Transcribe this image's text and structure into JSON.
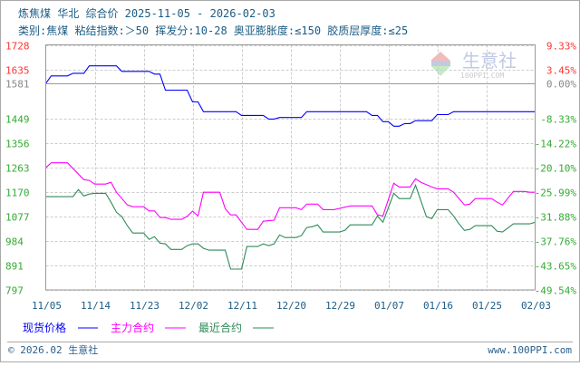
{
  "header": {
    "title": "炼焦煤 华北 综合价 2025-11-05 - 2026-02-03",
    "subtitle": "类别:焦煤 粘结指数:＞50 挥发分:10-28 奥亚膨胀度:≤150 胶质层厚度:≤25"
  },
  "watermark": {
    "brand": "生意社",
    "site": "100PPI.COM",
    "logo_text": "PPI"
  },
  "chart_data": {
    "type": "line",
    "title": "炼焦煤 华北 综合价 2025-11-05 - 2026-02-03",
    "x_range": [
      "2025-11-05",
      "2026-02-03"
    ],
    "ylim": [
      797,
      1728
    ],
    "y_ticks": [
      "1728",
      "1635",
      "1581",
      "1449",
      "1356",
      "1263",
      "1170",
      "1077",
      "984",
      "891",
      "797"
    ],
    "y_tick_values": [
      1728,
      1635,
      1581,
      1449,
      1356,
      1263,
      1170,
      1077,
      984,
      891,
      797
    ],
    "y2_ticks": [
      "9.33%",
      "3.45%",
      "0.00%",
      "-8.33%",
      "-14.22%",
      "-20.10%",
      "-25.99%",
      "-31.88%",
      "-37.76%",
      "-43.65%",
      "-49.54%"
    ],
    "baseline": 1581,
    "x_ticks": [
      "11/05",
      "11/14",
      "11/23",
      "12/02",
      "12/11",
      "12/20",
      "12/29",
      "01/07",
      "01/16",
      "01/25",
      "02/03"
    ],
    "x_tick_dates": [
      "2025-11-05",
      "2025-11-14",
      "2025-11-23",
      "2025-12-02",
      "2025-12-11",
      "2025-12-20",
      "2025-12-29",
      "2026-01-07",
      "2026-01-16",
      "2026-01-25",
      "2026-02-03"
    ],
    "grid": true,
    "legend_position": "bottom-left",
    "colors": {
      "positive_axis": "#ff3333",
      "zero_axis": "#888888",
      "negative_axis": "#33aa33"
    },
    "series": [
      {
        "name": "现货价格",
        "color": "#0000ff",
        "points": [
          [
            "2025-11-05",
            1581
          ],
          [
            "2025-11-06",
            1610
          ],
          [
            "2025-11-09",
            1610
          ],
          [
            "2025-11-10",
            1620
          ],
          [
            "2025-11-12",
            1620
          ],
          [
            "2025-11-13",
            1648
          ],
          [
            "2025-11-18",
            1648
          ],
          [
            "2025-11-19",
            1627
          ],
          [
            "2025-11-24",
            1627
          ],
          [
            "2025-11-25",
            1617
          ],
          [
            "2025-11-26",
            1617
          ],
          [
            "2025-11-27",
            1556
          ],
          [
            "2025-12-01",
            1556
          ],
          [
            "2025-12-02",
            1511
          ],
          [
            "2025-12-03",
            1511
          ],
          [
            "2025-12-04",
            1474
          ],
          [
            "2025-12-10",
            1474
          ],
          [
            "2025-12-11",
            1460
          ],
          [
            "2025-12-15",
            1460
          ],
          [
            "2025-12-16",
            1446
          ],
          [
            "2025-12-17",
            1446
          ],
          [
            "2025-12-18",
            1452
          ],
          [
            "2025-12-22",
            1452
          ],
          [
            "2025-12-23",
            1474
          ],
          [
            "2026-01-03",
            1474
          ],
          [
            "2026-01-04",
            1460
          ],
          [
            "2026-01-05",
            1460
          ],
          [
            "2026-01-06",
            1436
          ],
          [
            "2026-01-07",
            1436
          ],
          [
            "2026-01-08",
            1419
          ],
          [
            "2026-01-09",
            1419
          ],
          [
            "2026-01-10",
            1429
          ],
          [
            "2026-01-11",
            1429
          ],
          [
            "2026-01-12",
            1440
          ],
          [
            "2026-01-15",
            1440
          ],
          [
            "2026-01-16",
            1463
          ],
          [
            "2026-01-18",
            1463
          ],
          [
            "2026-01-19",
            1474
          ],
          [
            "2026-02-03",
            1474
          ]
        ]
      },
      {
        "name": "主力合约",
        "color": "#ff00ff",
        "points": [
          [
            "2025-11-05",
            1261
          ],
          [
            "2025-11-06",
            1280
          ],
          [
            "2025-11-09",
            1280
          ],
          [
            "2025-11-12",
            1216
          ],
          [
            "2025-11-13",
            1213
          ],
          [
            "2025-11-14",
            1199
          ],
          [
            "2025-11-16",
            1199
          ],
          [
            "2025-11-17",
            1206
          ],
          [
            "2025-11-18",
            1168
          ],
          [
            "2025-11-19",
            1144
          ],
          [
            "2025-11-20",
            1120
          ],
          [
            "2025-11-21",
            1113
          ],
          [
            "2025-11-23",
            1113
          ],
          [
            "2025-11-24",
            1097
          ],
          [
            "2025-11-25",
            1097
          ],
          [
            "2025-11-26",
            1072
          ],
          [
            "2025-11-27",
            1072
          ],
          [
            "2025-11-28",
            1065
          ],
          [
            "2025-11-30",
            1065
          ],
          [
            "2025-12-01",
            1076
          ],
          [
            "2025-12-02",
            1096
          ],
          [
            "2025-12-03",
            1078
          ],
          [
            "2025-12-04",
            1168
          ],
          [
            "2025-12-07",
            1168
          ],
          [
            "2025-12-08",
            1106
          ],
          [
            "2025-12-09",
            1082
          ],
          [
            "2025-12-10",
            1082
          ],
          [
            "2025-12-11",
            1054
          ],
          [
            "2025-12-12",
            1027
          ],
          [
            "2025-12-14",
            1027
          ],
          [
            "2025-12-15",
            1058
          ],
          [
            "2025-12-17",
            1062
          ],
          [
            "2025-12-18",
            1109
          ],
          [
            "2025-12-21",
            1109
          ],
          [
            "2025-12-22",
            1102
          ],
          [
            "2025-12-23",
            1123
          ],
          [
            "2025-12-25",
            1123
          ],
          [
            "2025-12-26",
            1102
          ],
          [
            "2025-12-28",
            1102
          ],
          [
            "2025-12-31",
            1116
          ],
          [
            "2026-01-04",
            1116
          ],
          [
            "2026-01-05",
            1082
          ],
          [
            "2026-01-06",
            1078
          ],
          [
            "2026-01-08",
            1202
          ],
          [
            "2026-01-09",
            1188
          ],
          [
            "2026-01-11",
            1188
          ],
          [
            "2026-01-12",
            1219
          ],
          [
            "2026-01-13",
            1206
          ],
          [
            "2026-01-15",
            1188
          ],
          [
            "2026-01-16",
            1181
          ],
          [
            "2026-01-18",
            1181
          ],
          [
            "2026-01-19",
            1168
          ],
          [
            "2026-01-21",
            1120
          ],
          [
            "2026-01-22",
            1123
          ],
          [
            "2026-01-23",
            1144
          ],
          [
            "2026-01-26",
            1144
          ],
          [
            "2026-01-27",
            1130
          ],
          [
            "2026-01-28",
            1120
          ],
          [
            "2026-01-30",
            1171
          ],
          [
            "2026-02-01",
            1171
          ],
          [
            "2026-02-02",
            1168
          ],
          [
            "2026-02-03",
            1168
          ]
        ]
      },
      {
        "name": "最近合约",
        "color": "#2e8b57",
        "points": [
          [
            "2025-11-05",
            1151
          ],
          [
            "2025-11-10",
            1151
          ],
          [
            "2025-11-11",
            1178
          ],
          [
            "2025-11-12",
            1154
          ],
          [
            "2025-11-13",
            1161
          ],
          [
            "2025-11-14",
            1164
          ],
          [
            "2025-11-16",
            1164
          ],
          [
            "2025-11-17",
            1130
          ],
          [
            "2025-11-18",
            1092
          ],
          [
            "2025-11-19",
            1075
          ],
          [
            "2025-11-20",
            1041
          ],
          [
            "2025-11-21",
            1013
          ],
          [
            "2025-11-23",
            1013
          ],
          [
            "2025-11-24",
            989
          ],
          [
            "2025-11-25",
            999
          ],
          [
            "2025-11-26",
            975
          ],
          [
            "2025-11-27",
            972
          ],
          [
            "2025-11-28",
            951
          ],
          [
            "2025-11-30",
            951
          ],
          [
            "2025-12-01",
            965
          ],
          [
            "2025-12-02",
            972
          ],
          [
            "2025-12-03",
            972
          ],
          [
            "2025-12-04",
            955
          ],
          [
            "2025-12-05",
            948
          ],
          [
            "2025-12-08",
            948
          ],
          [
            "2025-12-09",
            876
          ],
          [
            "2025-12-11",
            876
          ],
          [
            "2025-12-12",
            962
          ],
          [
            "2025-12-14",
            962
          ],
          [
            "2025-12-15",
            972
          ],
          [
            "2025-12-16",
            965
          ],
          [
            "2025-12-17",
            972
          ],
          [
            "2025-12-18",
            1006
          ],
          [
            "2025-12-19",
            996
          ],
          [
            "2025-12-21",
            996
          ],
          [
            "2025-12-22",
            1003
          ],
          [
            "2025-12-23",
            1034
          ],
          [
            "2025-12-24",
            1037
          ],
          [
            "2025-12-25",
            1044
          ],
          [
            "2025-12-26",
            1017
          ],
          [
            "2025-12-29",
            1017
          ],
          [
            "2025-12-30",
            1023
          ],
          [
            "2025-12-31",
            1044
          ],
          [
            "2026-01-04",
            1044
          ],
          [
            "2026-01-05",
            1078
          ],
          [
            "2026-01-06",
            1054
          ],
          [
            "2026-01-08",
            1164
          ],
          [
            "2026-01-09",
            1144
          ],
          [
            "2026-01-11",
            1144
          ],
          [
            "2026-01-12",
            1195
          ],
          [
            "2026-01-14",
            1075
          ],
          [
            "2026-01-15",
            1068
          ],
          [
            "2026-01-16",
            1102
          ],
          [
            "2026-01-18",
            1102
          ],
          [
            "2026-01-19",
            1078
          ],
          [
            "2026-01-20",
            1048
          ],
          [
            "2026-01-21",
            1023
          ],
          [
            "2026-01-22",
            1027
          ],
          [
            "2026-01-23",
            1041
          ],
          [
            "2026-01-26",
            1041
          ],
          [
            "2026-01-27",
            1020
          ],
          [
            "2026-01-28",
            1017
          ],
          [
            "2026-01-30",
            1048
          ],
          [
            "2026-02-02",
            1048
          ],
          [
            "2026-02-03",
            1054
          ]
        ]
      }
    ]
  },
  "footer": {
    "copyright": "© 2026.02 生意社",
    "site": "www.100PPI.com"
  }
}
